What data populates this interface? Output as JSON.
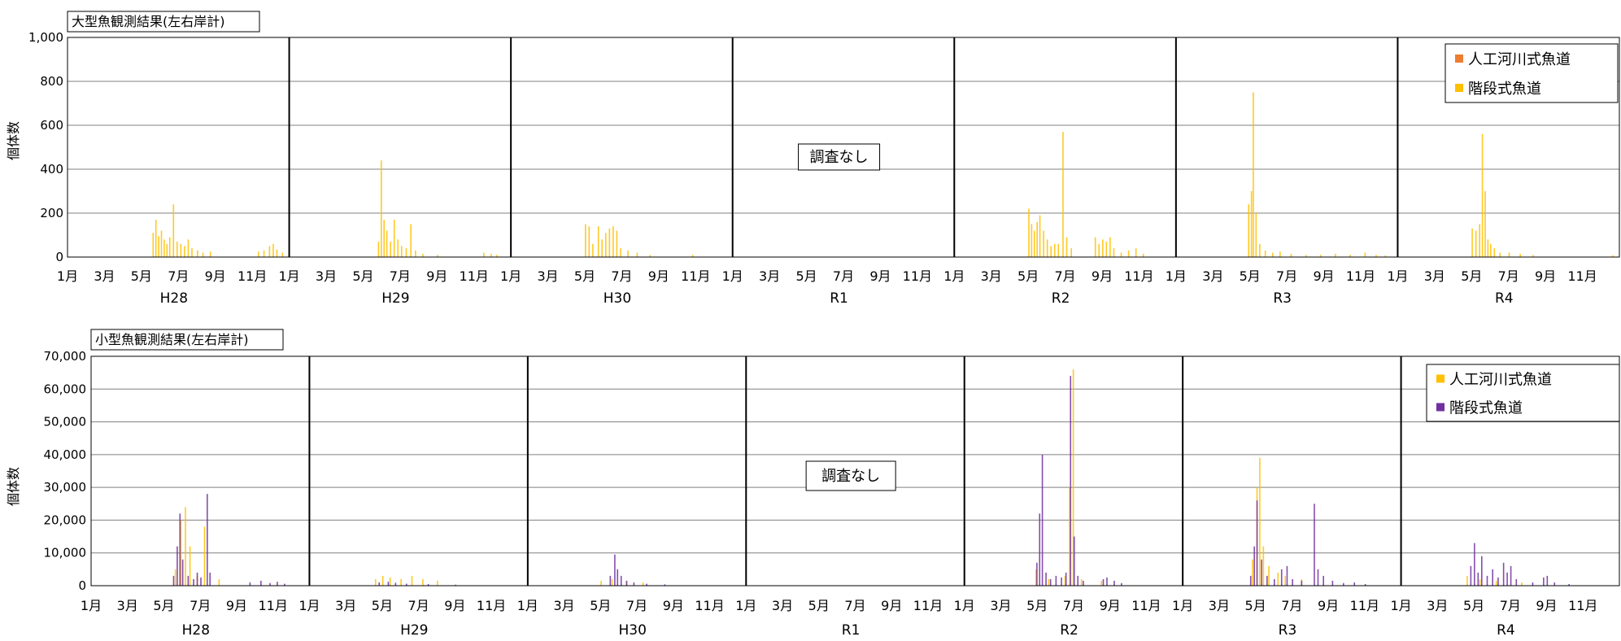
{
  "colors": {
    "large_artificial": "#ED7D31",
    "large_stepped": "#FFC000",
    "small_artificial": "#FFC000",
    "small_stepped": "#7030A0",
    "grid": "#808080"
  },
  "chart_data": [
    {
      "type": "bar",
      "title": "大型魚観測結果(左右岸計)",
      "ylabel": "個体数",
      "ylim": [
        0,
        1000
      ],
      "yticks": [
        "0",
        "200",
        "400",
        "600",
        "800",
        "1,000"
      ],
      "month_ticks": [
        "1月",
        "3月",
        "5月",
        "7月",
        "9月",
        "11月"
      ],
      "years": [
        "H28",
        "H29",
        "H30",
        "R1",
        "R2",
        "R3",
        "R4"
      ],
      "no_survey_label": "調査なし",
      "no_survey_year": "R1",
      "legend": {
        "position": "top-right",
        "entries": [
          "人工河川式魚道",
          "階段式魚道"
        ]
      },
      "series": [
        {
          "name": "階段式魚道",
          "color_key": "large_stepped",
          "peaks": {
            "H28": [
              [
                4.6,
                110
              ],
              [
                4.75,
                170
              ],
              [
                4.9,
                95
              ],
              [
                5.05,
                120
              ],
              [
                5.2,
                80
              ],
              [
                5.35,
                60
              ],
              [
                5.5,
                90
              ],
              [
                5.7,
                240
              ],
              [
                5.9,
                70
              ],
              [
                6.1,
                60
              ],
              [
                6.3,
                50
              ],
              [
                6.5,
                80
              ],
              [
                6.7,
                40
              ],
              [
                7.0,
                30
              ],
              [
                7.3,
                20
              ],
              [
                7.7,
                25
              ],
              [
                10.3,
                25
              ],
              [
                10.6,
                30
              ],
              [
                10.9,
                50
              ],
              [
                11.1,
                60
              ],
              [
                11.3,
                35
              ],
              [
                11.6,
                20
              ]
            ],
            "H29": [
              [
                4.8,
                70
              ],
              [
                4.95,
                440
              ],
              [
                5.1,
                170
              ],
              [
                5.25,
                120
              ],
              [
                5.45,
                70
              ],
              [
                5.65,
                170
              ],
              [
                5.85,
                80
              ],
              [
                6.05,
                50
              ],
              [
                6.3,
                40
              ],
              [
                6.55,
                150
              ],
              [
                6.8,
                30
              ],
              [
                7.2,
                15
              ],
              [
                8.0,
                10
              ],
              [
                10.5,
                20
              ],
              [
                10.9,
                15
              ],
              [
                11.2,
                10
              ]
            ],
            "H30": [
              [
                4.0,
                150
              ],
              [
                4.2,
                140
              ],
              [
                4.4,
                60
              ],
              [
                4.7,
                140
              ],
              [
                4.9,
                80
              ],
              [
                5.1,
                110
              ],
              [
                5.3,
                130
              ],
              [
                5.5,
                140
              ],
              [
                5.7,
                120
              ],
              [
                5.9,
                40
              ],
              [
                6.3,
                30
              ],
              [
                6.8,
                20
              ],
              [
                7.5,
                10
              ],
              [
                9.8,
                10
              ]
            ],
            "R1": [],
            "R2": [
              [
                4.0,
                220
              ],
              [
                4.15,
                150
              ],
              [
                4.3,
                120
              ],
              [
                4.45,
                160
              ],
              [
                4.6,
                190
              ],
              [
                4.8,
                120
              ],
              [
                5.0,
                80
              ],
              [
                5.2,
                50
              ],
              [
                5.4,
                60
              ],
              [
                5.6,
                60
              ],
              [
                5.85,
                570
              ],
              [
                6.05,
                90
              ],
              [
                6.3,
                40
              ],
              [
                7.6,
                90
              ],
              [
                7.8,
                60
              ],
              [
                8.0,
                80
              ],
              [
                8.2,
                70
              ],
              [
                8.4,
                90
              ],
              [
                8.6,
                40
              ],
              [
                9.0,
                20
              ],
              [
                9.4,
                30
              ],
              [
                9.8,
                40
              ],
              [
                10.2,
                15
              ]
            ],
            "R3": [
              [
                3.9,
                240
              ],
              [
                4.05,
                300
              ],
              [
                4.15,
                750
              ],
              [
                4.3,
                200
              ],
              [
                4.5,
                60
              ],
              [
                4.8,
                30
              ],
              [
                5.2,
                20
              ],
              [
                5.6,
                25
              ],
              [
                6.2,
                15
              ],
              [
                7.0,
                10
              ],
              [
                7.8,
                10
              ],
              [
                8.6,
                15
              ],
              [
                9.4,
                10
              ],
              [
                10.2,
                20
              ],
              [
                10.8,
                10
              ],
              [
                11.3,
                8
              ]
            ],
            "R4": [
              [
                4.0,
                130
              ],
              [
                4.2,
                120
              ],
              [
                4.4,
                150
              ],
              [
                4.55,
                560
              ],
              [
                4.7,
                300
              ],
              [
                4.85,
                80
              ],
              [
                5.0,
                60
              ],
              [
                5.2,
                40
              ],
              [
                5.5,
                20
              ],
              [
                6.0,
                20
              ],
              [
                6.6,
                15
              ],
              [
                7.3,
                10
              ],
              [
                11.6,
                8
              ]
            ]
          }
        },
        {
          "name": "人工河川式魚道",
          "color_key": "large_artificial",
          "peaks": {}
        }
      ]
    },
    {
      "type": "bar",
      "title": "小型魚観測結果(左右岸計)",
      "ylabel": "個体数",
      "ylim": [
        0,
        70000
      ],
      "yticks": [
        "0",
        "10,000",
        "20,000",
        "30,000",
        "40,000",
        "50,000",
        "60,000",
        "70,000"
      ],
      "month_ticks": [
        "1月",
        "3月",
        "5月",
        "7月",
        "9月",
        "11月"
      ],
      "years": [
        "H28",
        "H29",
        "H30",
        "R1",
        "R2",
        "R3",
        "R4"
      ],
      "no_survey_label": "調査なし",
      "no_survey_year": "R1",
      "legend": {
        "position": "top-right",
        "entries": [
          "人工河川式魚道",
          "階段式魚道"
        ]
      },
      "series": [
        {
          "name": "人工河川式魚道",
          "color_key": "small_artificial",
          "peaks": {
            "H28": [
              [
                4.6,
                5000
              ],
              [
                4.9,
                20000
              ],
              [
                5.15,
                24000
              ],
              [
                5.4,
                12000
              ],
              [
                5.8,
                3000
              ],
              [
                6.2,
                18000
              ],
              [
                7.0,
                2000
              ]
            ],
            "H29": [
              [
                3.6,
                2000
              ],
              [
                4.0,
                3000
              ],
              [
                4.4,
                2500
              ],
              [
                5.0,
                2000
              ],
              [
                5.6,
                3000
              ],
              [
                6.2,
                2000
              ],
              [
                7.0,
                1500
              ]
            ],
            "H30": [
              [
                4.0,
                1500
              ],
              [
                4.6,
                2000
              ],
              [
                5.4,
                1500
              ],
              [
                6.3,
                1000
              ]
            ],
            "R1": [],
            "R2": [
              [
                3.9,
                5000
              ],
              [
                4.6,
                2000
              ],
              [
                5.5,
                3000
              ],
              [
                5.75,
                30000
              ],
              [
                5.95,
                66000
              ],
              [
                6.4,
                2000
              ],
              [
                7.5,
                1500
              ]
            ],
            "R3": [
              [
                3.8,
                8000
              ],
              [
                4.05,
                30000
              ],
              [
                4.2,
                39000
              ],
              [
                4.4,
                12000
              ],
              [
                4.7,
                6000
              ],
              [
                5.2,
                4000
              ],
              [
                5.6,
                3000
              ],
              [
                6.5,
                2000
              ]
            ],
            "R4": [
              [
                3.6,
                3000
              ],
              [
                4.3,
                2000
              ],
              [
                5.2,
                1500
              ],
              [
                6.6,
                1000
              ]
            ]
          }
        },
        {
          "name": "階段式魚道",
          "color_key": "small_stepped",
          "peaks": {
            "H28": [
              [
                4.5,
                3000
              ],
              [
                4.7,
                12000
              ],
              [
                4.85,
                22000
              ],
              [
                5.0,
                8000
              ],
              [
                5.3,
                3000
              ],
              [
                5.6,
                2000
              ],
              [
                5.8,
                4000
              ],
              [
                6.0,
                2500
              ],
              [
                6.35,
                28000
              ],
              [
                6.5,
                4000
              ],
              [
                8.7,
                1000
              ],
              [
                9.3,
                1500
              ],
              [
                9.8,
                800
              ],
              [
                10.2,
                1200
              ],
              [
                10.6,
                600
              ]
            ],
            "H29": [
              [
                3.8,
                1000
              ],
              [
                4.3,
                1200
              ],
              [
                4.7,
                900
              ],
              [
                5.3,
                600
              ],
              [
                6.5,
                500
              ],
              [
                8.0,
                300
              ]
            ],
            "H30": [
              [
                4.5,
                3000
              ],
              [
                4.75,
                9500
              ],
              [
                4.9,
                5000
              ],
              [
                5.1,
                3000
              ],
              [
                5.4,
                1500
              ],
              [
                5.8,
                1000
              ],
              [
                6.5,
                600
              ],
              [
                7.5,
                400
              ]
            ],
            "R1": [],
            "R2": [
              [
                3.95,
                7000
              ],
              [
                4.1,
                22000
              ],
              [
                4.25,
                40000
              ],
              [
                4.45,
                4000
              ],
              [
                4.7,
                2000
              ],
              [
                5.0,
                3000
              ],
              [
                5.3,
                2500
              ],
              [
                5.55,
                4000
              ],
              [
                5.8,
                64000
              ],
              [
                6.0,
                15000
              ],
              [
                6.2,
                3000
              ],
              [
                6.5,
                1500
              ],
              [
                7.6,
                2000
              ],
              [
                7.8,
                2500
              ],
              [
                8.2,
                1500
              ],
              [
                8.6,
                800
              ]
            ],
            "R3": [
              [
                3.7,
                3000
              ],
              [
                3.9,
                12000
              ],
              [
                4.05,
                26000
              ],
              [
                4.3,
                8000
              ],
              [
                4.6,
                3000
              ],
              [
                5.0,
                2000
              ],
              [
                5.4,
                5000
              ],
              [
                5.7,
                6000
              ],
              [
                6.0,
                2000
              ],
              [
                6.5,
                1500
              ],
              [
                7.2,
                25000
              ],
              [
                7.4,
                5000
              ],
              [
                7.7,
                3000
              ],
              [
                8.2,
                1500
              ],
              [
                8.8,
                800
              ],
              [
                9.4,
                1000
              ],
              [
                10.0,
                500
              ]
            ],
            "R4": [
              [
                3.8,
                6000
              ],
              [
                4.0,
                13000
              ],
              [
                4.2,
                4000
              ],
              [
                4.4,
                9000
              ],
              [
                4.7,
                3000
              ],
              [
                5.0,
                5000
              ],
              [
                5.3,
                2500
              ],
              [
                5.6,
                7000
              ],
              [
                5.8,
                4000
              ],
              [
                6.0,
                6000
              ],
              [
                6.3,
                2000
              ],
              [
                7.2,
                1000
              ],
              [
                7.8,
                2500
              ],
              [
                8.0,
                3000
              ],
              [
                8.4,
                1000
              ],
              [
                9.2,
                500
              ]
            ]
          }
        }
      ]
    }
  ]
}
